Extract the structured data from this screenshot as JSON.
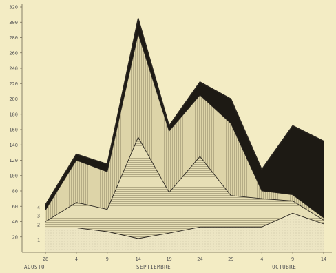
{
  "chart_data": {
    "type": "area",
    "stacked": true,
    "title": "",
    "xlabel": "",
    "ylabel": "",
    "ylim": [
      0,
      320
    ],
    "yticks": [
      20,
      40,
      60,
      80,
      100,
      120,
      140,
      160,
      180,
      200,
      220,
      240,
      260,
      280,
      300,
      320
    ],
    "x_tick_labels": [
      "28",
      "4",
      "9",
      "14",
      "19",
      "24",
      "29",
      "4",
      "9",
      "14"
    ],
    "x_group_labels": [
      {
        "label": "AGOSTO",
        "start_index": 0
      },
      {
        "label": "SEPTIEMBRE",
        "start_index": 1
      },
      {
        "label": "OCTUBRE",
        "start_index": 7
      }
    ],
    "series": [
      {
        "name": "1",
        "values": [
          32,
          32,
          27,
          18,
          25,
          33,
          33,
          33,
          51,
          37
        ]
      },
      {
        "name": "2",
        "values": [
          40,
          65,
          56,
          150,
          78,
          125,
          74,
          70,
          67,
          42
        ]
      },
      {
        "name": "3",
        "values": [
          55,
          120,
          105,
          285,
          158,
          205,
          168,
          80,
          75,
          45
        ]
      },
      {
        "name": "4",
        "values": [
          62,
          128,
          115,
          305,
          165,
          222,
          200,
          108,
          165,
          145
        ]
      }
    ],
    "colors": {
      "background": "#f3ecc4",
      "band1": "#e9e2bf",
      "band2": "#e4dab0",
      "band3": "#dcd3a5",
      "band4": "#1d1a14",
      "line": "#2a2620"
    }
  }
}
